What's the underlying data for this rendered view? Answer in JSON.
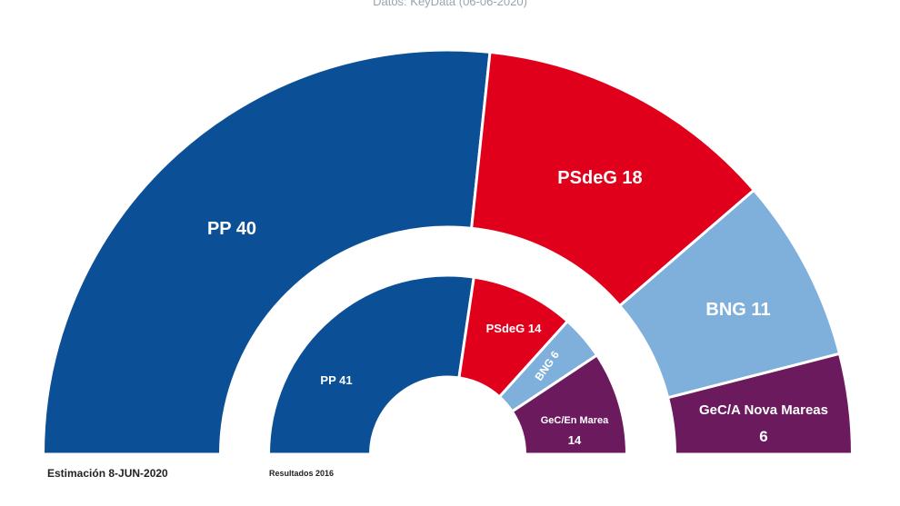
{
  "subtitle": "Datos: KeyData (06-06-2020)",
  "chart_data": {
    "type": "pie",
    "subtype": "parliament-semicircle",
    "rings": [
      {
        "name": "Estimación 8-JUN-2020",
        "seats": [
          {
            "party": "PP",
            "value": 40,
            "label": "PP 40",
            "color": "#0b4f97"
          },
          {
            "party": "PSdeG",
            "value": 18,
            "label": "PSdeG 18",
            "color": "#e1001b"
          },
          {
            "party": "BNG",
            "value": 11,
            "label": "BNG 11",
            "color": "#7fb0dc"
          },
          {
            "party": "GeC/A Nova Mareas",
            "value": 6,
            "label": "GeC/A Nova Mareas",
            "label2": "6",
            "color": "#6b1a5e"
          }
        ]
      },
      {
        "name": "Resultados 2016",
        "seats": [
          {
            "party": "PP",
            "value": 41,
            "label": "PP 41",
            "color": "#0b4f97"
          },
          {
            "party": "PSdeG",
            "value": 14,
            "label": "PSdeG 14",
            "color": "#e1001b"
          },
          {
            "party": "BNG",
            "value": 6,
            "label": "BNG 6",
            "color": "#7fb0dc"
          },
          {
            "party": "GeC/En Marea",
            "value": 14,
            "label": "GeC/En Marea",
            "label2": "14",
            "color": "#6b1a5e"
          }
        ]
      }
    ]
  }
}
